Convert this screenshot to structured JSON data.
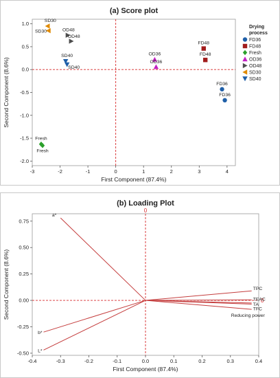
{
  "chart_data": [
    {
      "type": "scatter",
      "title": "(a) Score plot",
      "xlabel": "First Component (87.4%)",
      "ylabel": "Second Component (8.6%)",
      "xlim": [
        -3,
        4.3
      ],
      "ylim": [
        -2.1,
        1.1
      ],
      "xticks": [
        "-3",
        "-2",
        "-1",
        "0",
        "1",
        "2",
        "3",
        "4"
      ],
      "yticks": [
        "-2.0",
        "-1.5",
        "-1.0",
        "-0.5",
        "0.0",
        "0.5",
        "1.0"
      ],
      "reference_lines": {
        "x": 0,
        "y": 0
      },
      "legend_title": [
        "Drying",
        "process"
      ],
      "legend_position": "right",
      "series": [
        {
          "name": "FD36",
          "color": "#1f5fa8",
          "marker": "circle",
          "points": [
            {
              "x": 3.82,
              "y": -0.43,
              "label": "FD36"
            },
            {
              "x": 3.92,
              "y": -0.67,
              "label": "FD36"
            }
          ]
        },
        {
          "name": "FD48",
          "color": "#a11c1c",
          "marker": "square",
          "points": [
            {
              "x": 3.16,
              "y": 0.46,
              "label": "FD48"
            },
            {
              "x": 3.22,
              "y": 0.21,
              "label": "FD48"
            }
          ]
        },
        {
          "name": "Fresh",
          "color": "#2ca02c",
          "marker": "diamond",
          "points": [
            {
              "x": -2.68,
              "y": -1.63,
              "label": "Fresh"
            },
            {
              "x": -2.63,
              "y": -1.66,
              "label": "Fresh"
            }
          ]
        },
        {
          "name": "OD36",
          "color": "#c21fc2",
          "marker": "triangle-up",
          "points": [
            {
              "x": 1.4,
              "y": 0.22,
              "label": "OD36"
            },
            {
              "x": 1.45,
              "y": 0.06,
              "label": "OD36"
            }
          ]
        },
        {
          "name": "OD48",
          "color": "#4d4d4d",
          "marker": "triangle-right",
          "points": [
            {
              "x": -1.72,
              "y": 0.75,
              "label": "OD48"
            },
            {
              "x": -1.6,
              "y": 0.62,
              "label": "OD48"
            }
          ]
        },
        {
          "name": "SD30",
          "color": "#e08a00",
          "marker": "triangle-left",
          "points": [
            {
              "x": -2.45,
              "y": 0.95,
              "label": "SD30"
            },
            {
              "x": -2.42,
              "y": 0.85,
              "label": "SD30"
            }
          ]
        },
        {
          "name": "SD40",
          "color": "#1f5fa8",
          "marker": "triangle-down",
          "points": [
            {
              "x": -1.8,
              "y": 0.18,
              "label": "SD40"
            },
            {
              "x": -1.75,
              "y": 0.11,
              "label": "SD40"
            }
          ]
        }
      ]
    },
    {
      "type": "line",
      "title": "(b) Loading Plot",
      "xlabel": "First Component (87.4%)",
      "ylabel": "Second Component (8.6%)",
      "xlim": [
        -0.4,
        0.4
      ],
      "ylim": [
        -0.52,
        0.82
      ],
      "xticks": [
        "-0.4",
        "-0.3",
        "-0.2",
        "-0.1",
        "0.0",
        "0.1",
        "0.2",
        "0.3",
        "0.4"
      ],
      "yticks": [
        "-0.50",
        "-0.25",
        "0.00",
        "0.25",
        "0.50",
        "0.75"
      ],
      "reference_lines": {
        "x": 0,
        "y": 0,
        "label": "0"
      },
      "color": "#c43c3c",
      "vectors": [
        {
          "label": "a*",
          "x": -0.3,
          "y": 0.78
        },
        {
          "label": "TPC",
          "x": 0.375,
          "y": 0.09
        },
        {
          "label": "TEAC",
          "x": 0.375,
          "y": 0.005
        },
        {
          "label": "TA",
          "x": 0.375,
          "y": -0.025
        },
        {
          "label": "TFC",
          "x": 0.375,
          "y": -0.035
        },
        {
          "label": "Reducing power",
          "x": 0.375,
          "y": -0.085
        },
        {
          "label": "b*",
          "x": -0.36,
          "y": -0.3
        },
        {
          "label": "L*",
          "x": -0.36,
          "y": -0.47
        }
      ]
    }
  ]
}
